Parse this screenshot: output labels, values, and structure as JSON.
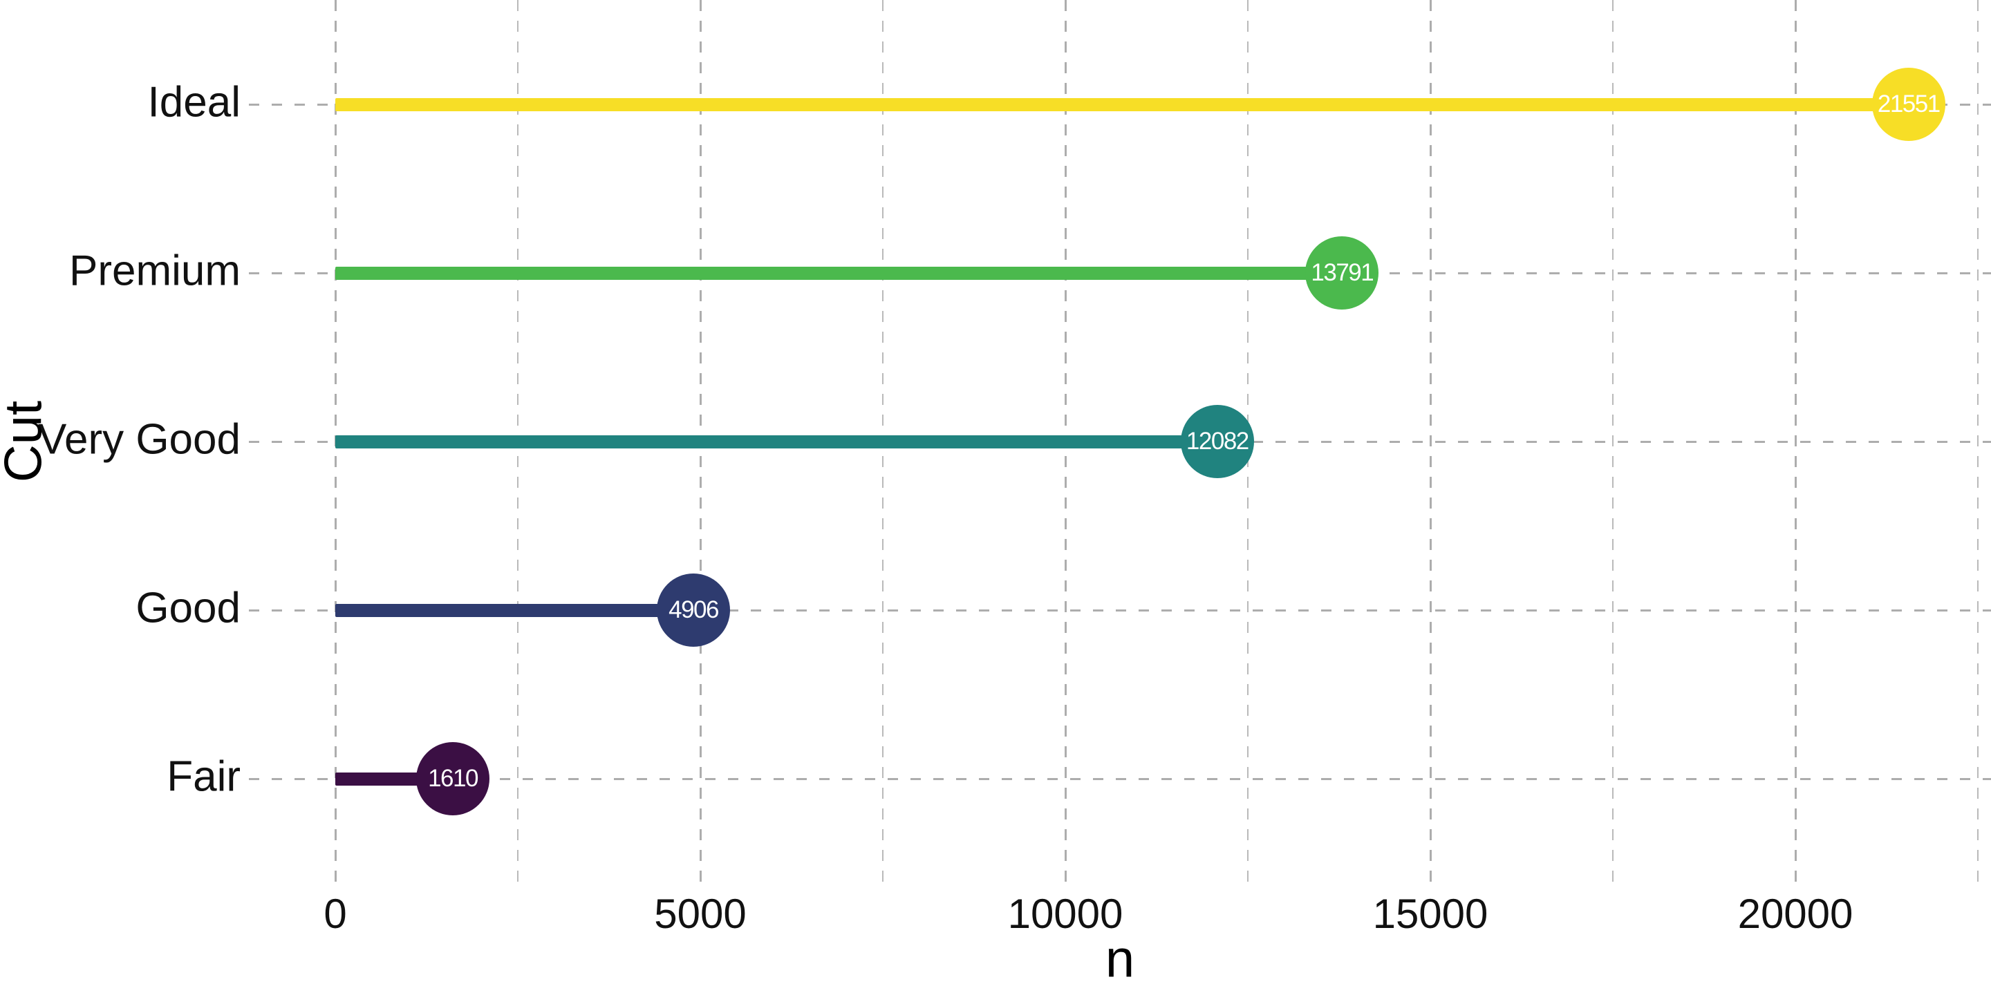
{
  "chart_data": {
    "type": "lollipop",
    "orientation": "horizontal",
    "title": "",
    "xlabel": "n",
    "ylabel": "Cut",
    "categories": [
      "Ideal",
      "Premium",
      "Very Good",
      "Good",
      "Fair"
    ],
    "values": [
      21551,
      13791,
      12082,
      4906,
      1610
    ],
    "value_labels": [
      "21551",
      "13791",
      "12082",
      "4906",
      "1610"
    ],
    "colors": [
      "#F7DE26",
      "#4BB94D",
      "#20837F",
      "#2E3B6F",
      "#3B0F44"
    ],
    "value_label_color": "#FFFFFF",
    "x_major_ticks": [
      0,
      5000,
      10000,
      15000,
      20000
    ],
    "x_major_tick_labels": [
      "0",
      "5000",
      "10000",
      "15000",
      "20000"
    ],
    "x_minor_ticks": [
      2500,
      7500,
      12500,
      17500,
      22500
    ],
    "xlim": [
      -1200,
      22700
    ],
    "grid": "dashed",
    "grid_color": "#ADADAD",
    "background_color": "#FFFFFF",
    "text_color": "#111111",
    "legend": "none"
  }
}
